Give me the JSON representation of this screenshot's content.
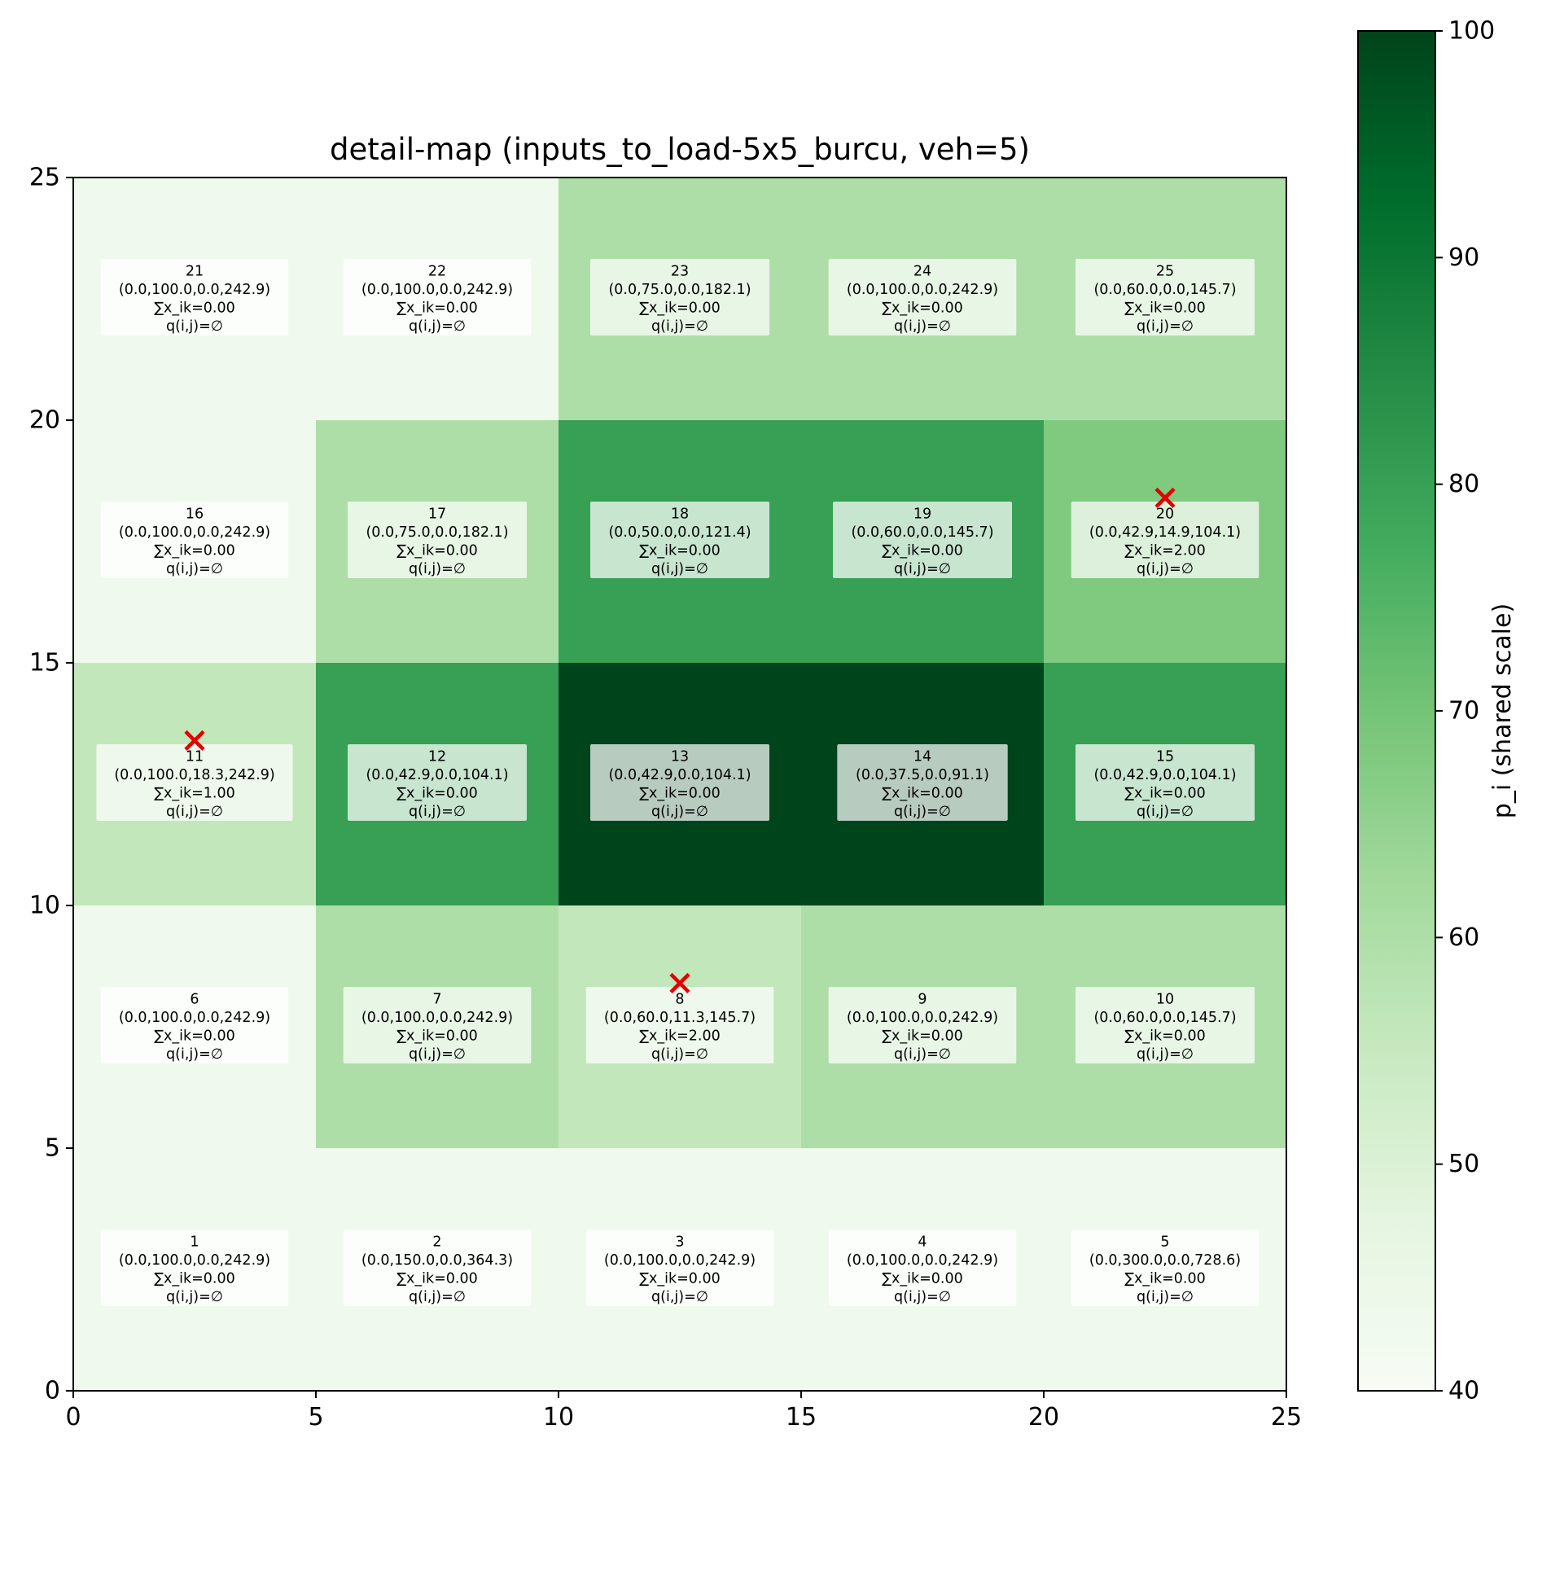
{
  "chart_data": {
    "type": "heatmap",
    "title": "detail-map (inputs_to_load-5x5_burcu, veh=5)",
    "xlim": [
      0,
      25
    ],
    "ylim": [
      0,
      25
    ],
    "x_ticks": [
      "0",
      "5",
      "10",
      "15",
      "20",
      "25"
    ],
    "y_ticks": [
      "0",
      "5",
      "10",
      "15",
      "20",
      "25"
    ],
    "grid": false,
    "colormap": "Greens",
    "colorbar": {
      "label": "p_i (shared scale)",
      "range": [
        40,
        100
      ],
      "ticks": [
        "40",
        "50",
        "60",
        "70",
        "80",
        "90",
        "100"
      ]
    },
    "cell_size": 5,
    "grid_cols": 5,
    "grid_rows": 5,
    "cells": [
      {
        "id": 1,
        "p": 42.9,
        "lines": [
          "1",
          "(0.0,100.0,0.0,242.9)",
          "∑x_ik=0.00",
          "q(i,j)=∅"
        ]
      },
      {
        "id": 2,
        "p": 42.9,
        "lines": [
          "2",
          "(0.0,150.0,0.0,364.3)",
          "∑x_ik=0.00",
          "q(i,j)=∅"
        ]
      },
      {
        "id": 3,
        "p": 42.9,
        "lines": [
          "3",
          "(0.0,100.0,0.0,242.9)",
          "∑x_ik=0.00",
          "q(i,j)=∅"
        ]
      },
      {
        "id": 4,
        "p": 42.9,
        "lines": [
          "4",
          "(0.0,100.0,0.0,242.9)",
          "∑x_ik=0.00",
          "q(i,j)=∅"
        ]
      },
      {
        "id": 5,
        "p": 42.9,
        "lines": [
          "5",
          "(0.0,300.0,0.0,728.6)",
          "∑x_ik=0.00",
          "q(i,j)=∅"
        ]
      },
      {
        "id": 6,
        "p": 42.9,
        "lines": [
          "6",
          "(0.0,100.0,0.0,242.9)",
          "∑x_ik=0.00",
          "q(i,j)=∅"
        ]
      },
      {
        "id": 7,
        "p": 60.0,
        "lines": [
          "7",
          "(0.0,100.0,0.0,242.9)",
          "∑x_ik=0.00",
          "q(i,j)=∅"
        ]
      },
      {
        "id": 8,
        "p": 56.0,
        "lines": [
          "8",
          "(0.0,60.0,11.3,145.7)",
          "∑x_ik=2.00",
          "q(i,j)=∅"
        ],
        "marker": true
      },
      {
        "id": 9,
        "p": 60.0,
        "lines": [
          "9",
          "(0.0,100.0,0.0,242.9)",
          "∑x_ik=0.00",
          "q(i,j)=∅"
        ]
      },
      {
        "id": 10,
        "p": 60.0,
        "lines": [
          "10",
          "(0.0,60.0,0.0,145.7)",
          "∑x_ik=0.00",
          "q(i,j)=∅"
        ]
      },
      {
        "id": 11,
        "p": 56.0,
        "lines": [
          "11",
          "(0.0,100.0,18.3,242.9)",
          "∑x_ik=1.00",
          "q(i,j)=∅"
        ],
        "marker": true
      },
      {
        "id": 12,
        "p": 80.0,
        "lines": [
          "12",
          "(0.0,42.9,0.0,104.1)",
          "∑x_ik=0.00",
          "q(i,j)=∅"
        ]
      },
      {
        "id": 13,
        "p": 100.0,
        "lines": [
          "13",
          "(0.0,42.9,0.0,104.1)",
          "∑x_ik=0.00",
          "q(i,j)=∅"
        ]
      },
      {
        "id": 14,
        "p": 100.0,
        "lines": [
          "14",
          "(0.0,37.5,0.0,91.1)",
          "∑x_ik=0.00",
          "q(i,j)=∅"
        ]
      },
      {
        "id": 15,
        "p": 80.0,
        "lines": [
          "15",
          "(0.0,42.9,0.0,104.1)",
          "∑x_ik=0.00",
          "q(i,j)=∅"
        ]
      },
      {
        "id": 16,
        "p": 42.9,
        "lines": [
          "16",
          "(0.0,100.0,0.0,242.9)",
          "∑x_ik=0.00",
          "q(i,j)=∅"
        ]
      },
      {
        "id": 17,
        "p": 60.0,
        "lines": [
          "17",
          "(0.0,75.0,0.0,182.1)",
          "∑x_ik=0.00",
          "q(i,j)=∅"
        ]
      },
      {
        "id": 18,
        "p": 80.0,
        "lines": [
          "18",
          "(0.0,50.0,0.0,121.4)",
          "∑x_ik=0.00",
          "q(i,j)=∅"
        ]
      },
      {
        "id": 19,
        "p": 80.0,
        "lines": [
          "19",
          "(0.0,60.0,0.0,145.7)",
          "∑x_ik=0.00",
          "q(i,j)=∅"
        ]
      },
      {
        "id": 20,
        "p": 68.0,
        "lines": [
          "20",
          "(0.0,42.9,14.9,104.1)",
          "∑x_ik=2.00",
          "q(i,j)=∅"
        ],
        "marker": true
      },
      {
        "id": 21,
        "p": 42.9,
        "lines": [
          "21",
          "(0.0,100.0,0.0,242.9)",
          "∑x_ik=0.00",
          "q(i,j)=∅"
        ]
      },
      {
        "id": 22,
        "p": 42.9,
        "lines": [
          "22",
          "(0.0,100.0,0.0,242.9)",
          "∑x_ik=0.00",
          "q(i,j)=∅"
        ]
      },
      {
        "id": 23,
        "p": 60.0,
        "lines": [
          "23",
          "(0.0,75.0,0.0,182.1)",
          "∑x_ik=0.00",
          "q(i,j)=∅"
        ]
      },
      {
        "id": 24,
        "p": 60.0,
        "lines": [
          "24",
          "(0.0,100.0,0.0,242.9)",
          "∑x_ik=0.00",
          "q(i,j)=∅"
        ]
      },
      {
        "id": 25,
        "p": 60.0,
        "lines": [
          "25",
          "(0.0,60.0,0.0,145.7)",
          "∑x_ik=0.00",
          "q(i,j)=∅"
        ]
      }
    ],
    "marker_style": {
      "symbol": "x",
      "color": "#e50000"
    }
  }
}
